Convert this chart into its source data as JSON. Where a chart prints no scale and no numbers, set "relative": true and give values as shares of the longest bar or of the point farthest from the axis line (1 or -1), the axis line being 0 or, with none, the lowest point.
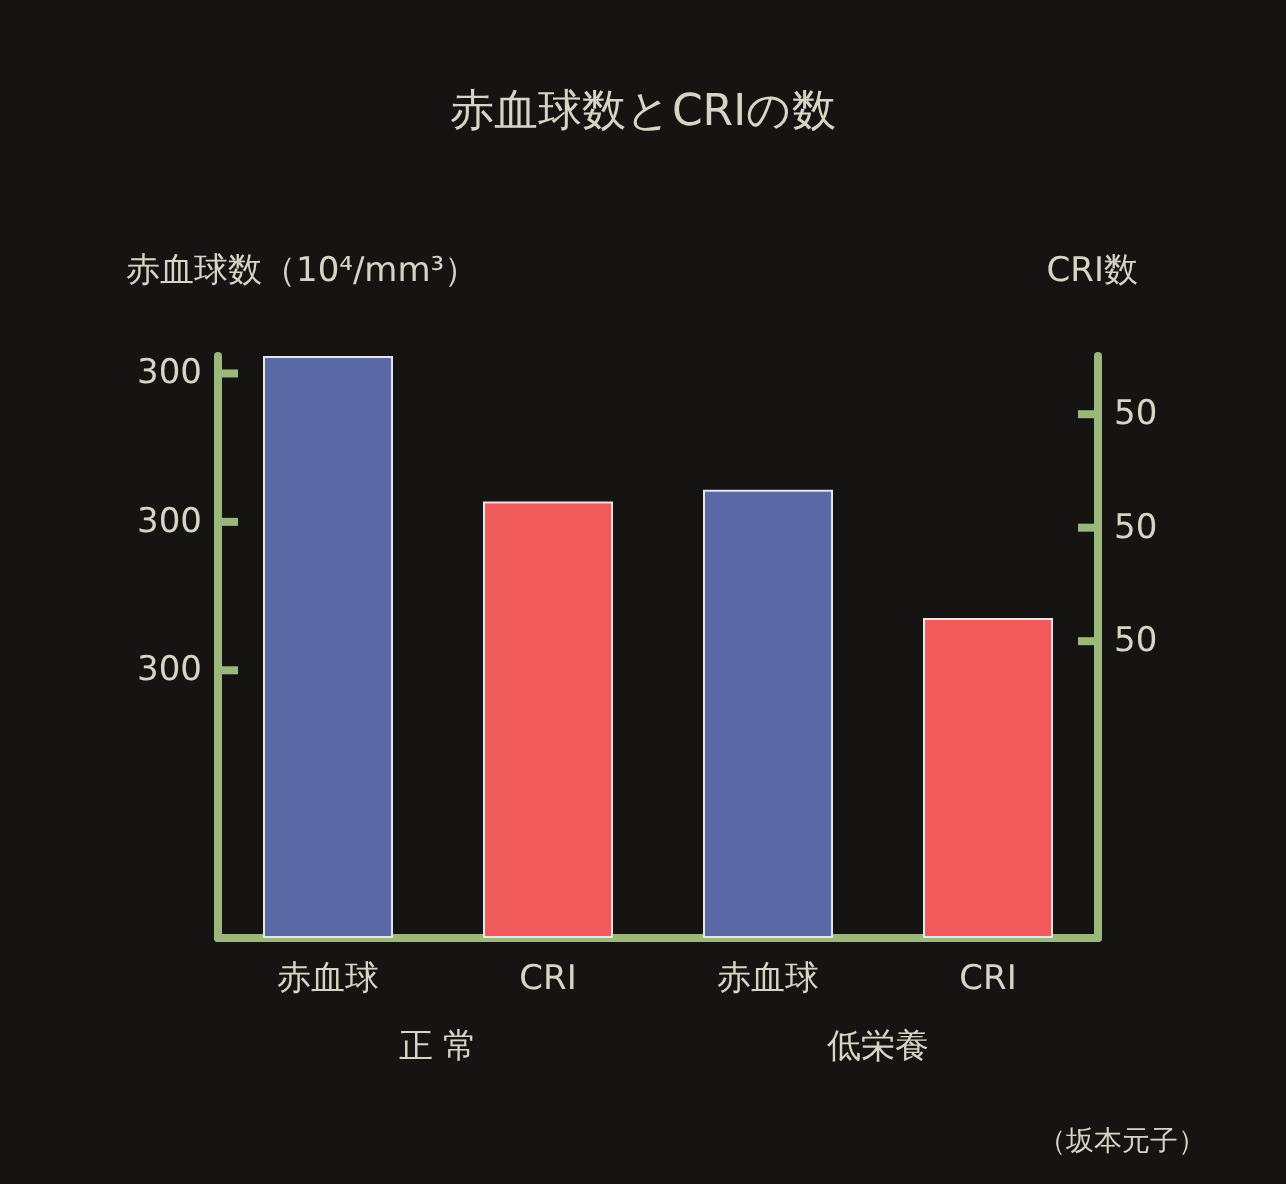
{
  "chart_data": {
    "type": "bar",
    "title": "赤血球数とCRIの数",
    "ylabel": "赤血球数（10⁴/mm³）",
    "y2label": "CRI数",
    "categories": [
      "赤血球",
      "CRI",
      "赤血球",
      "CRI"
    ],
    "series": [
      {
        "color": "#5b69a6",
        "values": [
          1.0,
          null,
          0.77,
          null
        ]
      },
      {
        "color": "#f05a5a",
        "values": [
          null,
          0.75,
          null,
          0.55
        ]
      }
    ],
    "relative": true,
    "annotations": [
      "300",
      "300",
      "300",
      "50",
      "50",
      "50",
      "正 常",
      "低栄養",
      "（坂本元子）"
    ]
  }
}
